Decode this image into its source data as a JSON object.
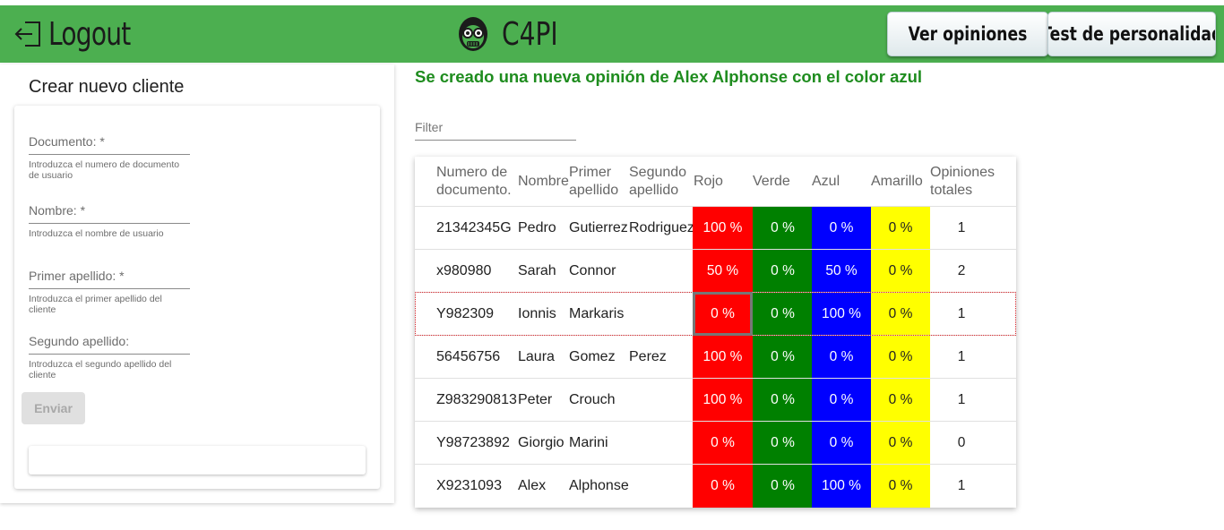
{
  "header": {
    "logout_label": "Logout",
    "brand_label": "C4PI",
    "nav": [
      {
        "label": "Ver opiniones"
      },
      {
        "label": "Test de personalidad"
      }
    ]
  },
  "form": {
    "title": "Crear nuevo cliente",
    "fields": [
      {
        "label": "Documento: *",
        "hint": "Introduzca el numero de documento de usuario"
      },
      {
        "label": "Nombre: *",
        "hint": "Introduzca el nombre de usuario"
      },
      {
        "label": "Primer apellido: *",
        "hint": "Introduzca el primer apellido del cliente"
      },
      {
        "label": "Segundo apellido:",
        "hint": "Introduzca el segundo apellido del cliente"
      }
    ],
    "submit_label": "Enviar"
  },
  "message": "Se creado una nueva opinión de Alex Alphonse con el color azul",
  "filter": {
    "label": "Filter"
  },
  "colors": {
    "header_bg": "#4caf50",
    "message": "#1e8c1e",
    "rojo": "#ff0000",
    "verde": "#008000",
    "azul": "#0000ff",
    "amarillo": "#ffff00"
  },
  "icons": {
    "logout": "logout-icon",
    "brand": "robot-head-icon"
  },
  "table": {
    "headers": [
      "Numero de documento.",
      "Nombre",
      "Primer apellido",
      "Segundo apellido",
      "Rojo",
      "Verde",
      "Azul",
      "Amarillo",
      "Opiniones totales"
    ],
    "rows": [
      [
        "21342345G",
        "Pedro",
        "Gutierrez",
        "Rodriguez",
        "100 %",
        "0 %",
        "0 %",
        "0 %",
        "1"
      ],
      [
        "x980980",
        "Sarah",
        "Connor",
        "",
        "50 %",
        "0 %",
        "50 %",
        "0 %",
        "2"
      ],
      [
        "Y982309",
        "Ionnis",
        "Markaris",
        "",
        "0 %",
        "0 %",
        "100 %",
        "0 %",
        "1"
      ],
      [
        "56456756",
        "Laura",
        "Gomez",
        "Perez",
        "100 %",
        "0 %",
        "0 %",
        "0 %",
        "1"
      ],
      [
        "Z983290813",
        "Peter",
        "Crouch",
        "",
        "100 %",
        "0 %",
        "0 %",
        "0 %",
        "1"
      ],
      [
        "Y98723892",
        "Giorgio",
        "Marini",
        "",
        "0 %",
        "0 %",
        "0 %",
        "0 %",
        "0"
      ],
      [
        "X9231093",
        "Alex",
        "Alphonse",
        "",
        "0 %",
        "0 %",
        "100 %",
        "0 %",
        "1"
      ]
    ]
  }
}
